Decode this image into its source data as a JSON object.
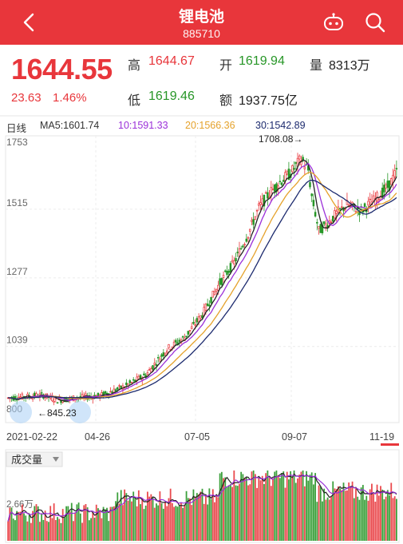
{
  "header": {
    "title": "锂电池",
    "code": "885710"
  },
  "quote": {
    "price": "1644.55",
    "change": "23.63",
    "change_pct": "1.46%",
    "high_label": "高",
    "high": "1644.67",
    "open_label": "开",
    "open": "1619.94",
    "volume_label": "量",
    "volume": "8313万",
    "low_label": "低",
    "low": "1619.46",
    "amount_label": "额",
    "amount": "1937.75亿"
  },
  "ma_legend": {
    "period": "日线",
    "ma5": "MA5:1601.74",
    "ma10": "10:1591.33",
    "ma20": "20:1566.36",
    "ma30": "30:1542.89"
  },
  "colors": {
    "up": "#e8363b",
    "down": "#279627",
    "ma5": "#222222",
    "ma10": "#9b30d9",
    "ma20": "#e5a22b",
    "ma30": "#1c2a6e"
  },
  "volume_panel": {
    "selector": "成交量",
    "ymax_label": "2.66万"
  },
  "chart_data": {
    "type": "candlestick",
    "y_ticks": [
      "1753",
      "1515",
      "1277",
      "1039",
      "800"
    ],
    "ylim": [
      800,
      1753
    ],
    "x_ticks": [
      "2021-02-22",
      "04-26",
      "07-05",
      "09-07",
      "11-19"
    ],
    "annotations": {
      "max": "1708.08→",
      "min": "←845.23"
    },
    "x": [
      "2021-02-22",
      "04-26",
      "07-05",
      "09-07",
      "11-19"
    ],
    "close_approx": [
      860,
      870,
      1230,
      1640,
      1644.55
    ]
  }
}
